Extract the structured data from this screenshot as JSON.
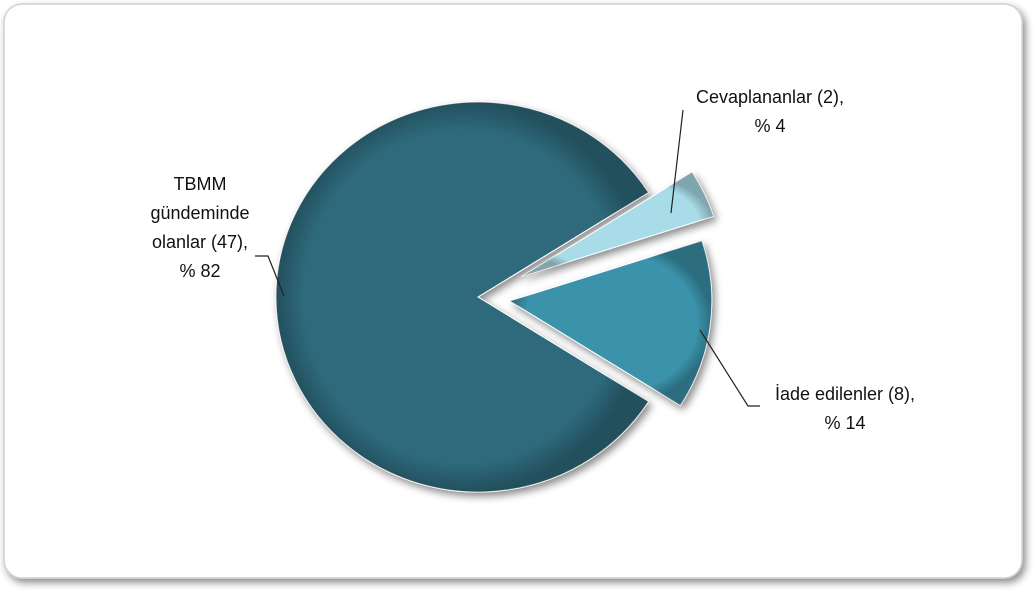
{
  "chart_data": {
    "type": "pie",
    "categories": [
      "TBMM gündeminde olanlar (47),",
      "Cevaplananlar (2),",
      "İade edilenler (8),"
    ],
    "values": [
      82,
      4,
      14
    ],
    "value_labels": [
      "% 82",
      "% 4",
      "% 14"
    ],
    "colors": [
      "#2f6b7b",
      "#a9dce9",
      "#3b93ab"
    ]
  }
}
